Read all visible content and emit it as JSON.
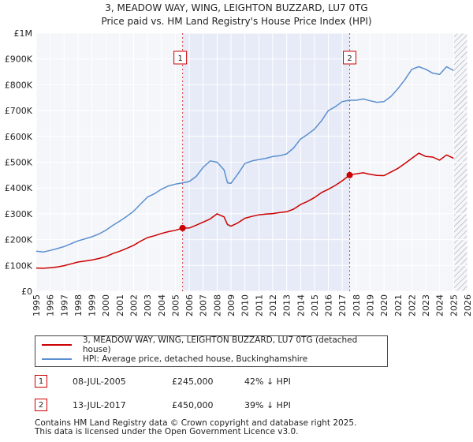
{
  "chart_data": {
    "type": "line",
    "title": "3, MEADOW WAY, WING, LEIGHTON BUZZARD, LU7 0TG",
    "subtitle": "Price paid vs. HM Land Registry's House Price Index (HPI)",
    "xlim": [
      1995,
      2026
    ],
    "ylim": [
      0,
      1000000
    ],
    "x_ticks": [
      "1995",
      "1996",
      "1997",
      "1998",
      "1999",
      "2000",
      "2001",
      "2002",
      "2003",
      "2004",
      "2005",
      "2006",
      "2007",
      "2008",
      "2009",
      "2010",
      "2011",
      "2012",
      "2013",
      "2014",
      "2015",
      "2016",
      "2017",
      "2018",
      "2019",
      "2020",
      "2021",
      "2022",
      "2023",
      "2024",
      "2025",
      "2026"
    ],
    "y_ticks": [
      {
        "value": 0,
        "label": "£0"
      },
      {
        "value": 100000,
        "label": "£100K"
      },
      {
        "value": 200000,
        "label": "£200K"
      },
      {
        "value": 300000,
        "label": "£300K"
      },
      {
        "value": 400000,
        "label": "£400K"
      },
      {
        "value": 500000,
        "label": "£500K"
      },
      {
        "value": 600000,
        "label": "£600K"
      },
      {
        "value": 700000,
        "label": "£700K"
      },
      {
        "value": 800000,
        "label": "£800K"
      },
      {
        "value": 900000,
        "label": "£900K"
      },
      {
        "value": 1000000,
        "label": "£1M"
      }
    ],
    "grid": true,
    "shaded_period": [
      2005.52,
      2017.53
    ],
    "future_hatch_from": 2025.0,
    "series": [
      {
        "name": "3, MEADOW WAY, WING, LEIGHTON BUZZARD, LU7 0TG (detached house)",
        "color": "#cc0000",
        "x": [
          1995.0,
          1995.5,
          1996.0,
          1996.5,
          1997.0,
          1997.5,
          1998.0,
          1998.5,
          1999.0,
          1999.5,
          2000.0,
          2000.5,
          2001.0,
          2001.5,
          2002.0,
          2002.5,
          2003.0,
          2003.5,
          2004.0,
          2004.5,
          2005.0,
          2005.52,
          2006.0,
          2006.5,
          2007.0,
          2007.5,
          2008.0,
          2008.5,
          2008.75,
          2009.0,
          2009.5,
          2010.0,
          2010.5,
          2011.0,
          2011.5,
          2012.0,
          2012.5,
          2013.0,
          2013.5,
          2014.0,
          2014.5,
          2015.0,
          2015.5,
          2016.0,
          2016.5,
          2017.0,
          2017.53,
          2018.0,
          2018.5,
          2019.0,
          2019.5,
          2020.0,
          2020.5,
          2021.0,
          2021.5,
          2022.0,
          2022.5,
          2023.0,
          2023.5,
          2024.0,
          2024.5,
          2025.0
        ],
        "values": [
          90000,
          89000,
          91000,
          94000,
          99000,
          106000,
          113000,
          117000,
          121000,
          127000,
          134000,
          146000,
          155000,
          166000,
          178000,
          194000,
          208000,
          215000,
          224000,
          231000,
          236000,
          245000,
          245000,
          256000,
          268000,
          280000,
          300000,
          288000,
          258000,
          252000,
          265000,
          283000,
          290000,
          296000,
          299000,
          301000,
          305000,
          308000,
          318000,
          336000,
          348000,
          363000,
          382000,
          395000,
          410000,
          428000,
          450000,
          455000,
          459000,
          453000,
          449000,
          448000,
          462000,
          476000,
          495000,
          515000,
          535000,
          522000,
          520000,
          508000,
          528000,
          515000
        ]
      },
      {
        "name": "HPI: Average price, detached house, Buckinghamshire",
        "color": "#5b8fcf",
        "x": [
          1995.0,
          1995.5,
          1996.0,
          1996.5,
          1997.0,
          1997.5,
          1998.0,
          1998.5,
          1999.0,
          1999.5,
          2000.0,
          2000.5,
          2001.0,
          2001.5,
          2002.0,
          2002.5,
          2003.0,
          2003.5,
          2004.0,
          2004.5,
          2005.0,
          2005.5,
          2006.0,
          2006.5,
          2007.0,
          2007.5,
          2008.0,
          2008.5,
          2008.75,
          2009.0,
          2009.5,
          2010.0,
          2010.5,
          2011.0,
          2011.5,
          2012.0,
          2012.5,
          2013.0,
          2013.5,
          2014.0,
          2014.5,
          2015.0,
          2015.5,
          2016.0,
          2016.5,
          2017.0,
          2017.5,
          2018.0,
          2018.5,
          2019.0,
          2019.5,
          2020.0,
          2020.5,
          2021.0,
          2021.5,
          2022.0,
          2022.5,
          2023.0,
          2023.5,
          2024.0,
          2024.5,
          2025.0
        ],
        "values": [
          155000,
          152000,
          158000,
          165000,
          173000,
          184000,
          195000,
          203000,
          211000,
          222000,
          236000,
          255000,
          272000,
          290000,
          310000,
          338000,
          365000,
          378000,
          395000,
          408000,
          415000,
          420000,
          425000,
          445000,
          480000,
          505000,
          500000,
          470000,
          420000,
          418000,
          455000,
          495000,
          505000,
          510000,
          515000,
          522000,
          525000,
          532000,
          555000,
          590000,
          608000,
          628000,
          660000,
          700000,
          715000,
          735000,
          740000,
          740000,
          745000,
          738000,
          732000,
          735000,
          755000,
          785000,
          820000,
          860000,
          870000,
          860000,
          845000,
          840000,
          870000,
          855000
        ]
      }
    ],
    "sales": [
      {
        "label": "1",
        "x": 2005.52,
        "value": 245000
      },
      {
        "label": "2",
        "x": 2017.53,
        "value": 450000
      }
    ]
  },
  "legend": {
    "property": "3, MEADOW WAY, WING, LEIGHTON BUZZARD, LU7 0TG (detached house)",
    "hpi": "HPI: Average price, detached house, Buckinghamshire"
  },
  "transactions": [
    {
      "num": "1",
      "date": "08-JUL-2005",
      "price": "£245,000",
      "hpi": "42% ↓ HPI"
    },
    {
      "num": "2",
      "date": "13-JUL-2017",
      "price": "£450,000",
      "hpi": "39% ↓ HPI"
    }
  ],
  "footer": {
    "line1": "Contains HM Land Registry data © Crown copyright and database right 2025.",
    "line2": "This data is licensed under the Open Government Licence v3.0."
  }
}
